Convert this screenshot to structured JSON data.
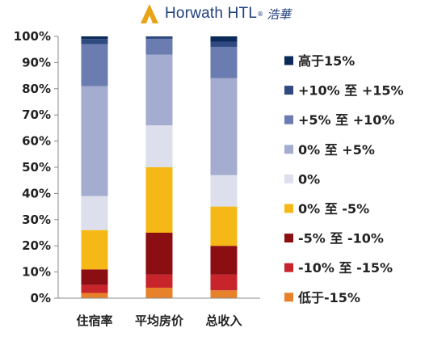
{
  "logo": {
    "brand": "Horwath HTL",
    "cn": "浩華",
    "colors": {
      "gold": "#e8a317",
      "navy": "#1f3f7a"
    }
  },
  "chart_data": {
    "type": "bar",
    "stacked": true,
    "percent": true,
    "categories": [
      "住宿率",
      "平均房价",
      "总收入"
    ],
    "ylim": [
      0,
      100
    ],
    "yticks": [
      "0%",
      "10%",
      "20%",
      "30%",
      "40%",
      "50%",
      "60%",
      "70%",
      "80%",
      "90%",
      "100%"
    ],
    "legend_position": "right",
    "series": [
      {
        "name": "低于-15%",
        "color": "#e8822a",
        "values": [
          2,
          4,
          3
        ]
      },
      {
        "name": "-10% 至 -15%",
        "color": "#c8242b",
        "values": [
          3,
          5,
          6
        ]
      },
      {
        "name": "-5% 至 -10%",
        "color": "#8b0f12",
        "values": [
          6,
          16,
          11
        ]
      },
      {
        "name": "0% 至 -5%",
        "color": "#f5b817",
        "values": [
          15,
          25,
          15
        ]
      },
      {
        "name": "0%",
        "color": "#dde0ec",
        "values": [
          13,
          16,
          12
        ]
      },
      {
        "name": "0% 至 +5%",
        "color": "#a4adcf",
        "values": [
          42,
          27,
          37
        ]
      },
      {
        "name": "+5% 至 +10%",
        "color": "#6b7cb0",
        "values": [
          16,
          6,
          12
        ]
      },
      {
        "name": "+10% 至 +15%",
        "color": "#2e4a80",
        "values": [
          2,
          1,
          2
        ]
      },
      {
        "name": "高于15%",
        "color": "#0b2a5a",
        "values": [
          1,
          0,
          2
        ]
      }
    ]
  }
}
